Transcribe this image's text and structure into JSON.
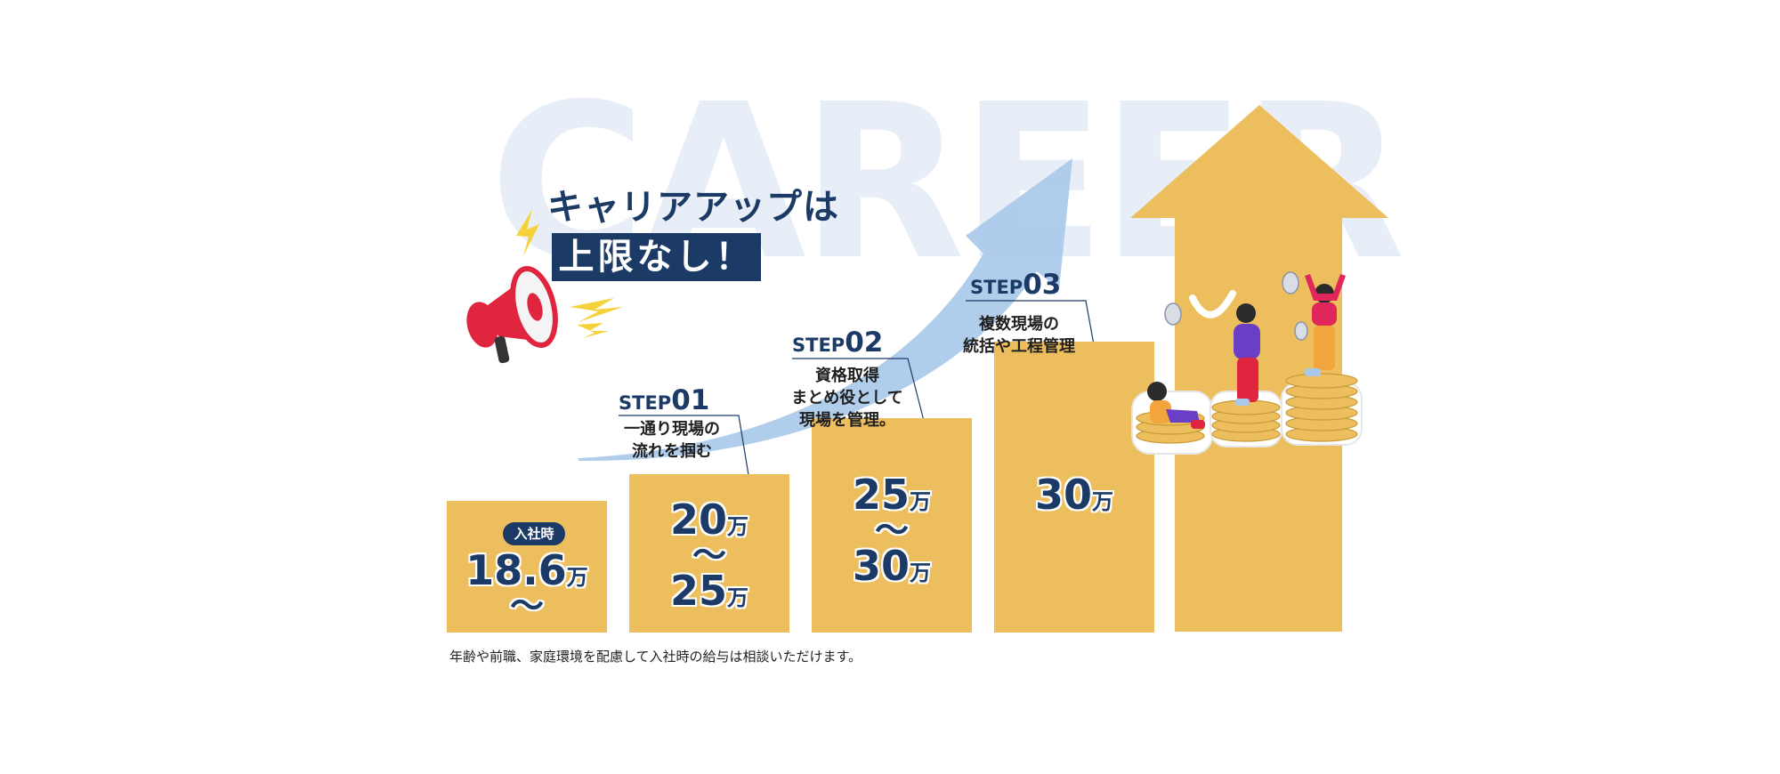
{
  "background_word": "CAREER",
  "headline": {
    "line1": "キャリアアップは",
    "line2": "上限なし！"
  },
  "columns": [
    {
      "badge": "入社時",
      "amount_lines": [
        {
          "value": "18.6",
          "unit": "万"
        }
      ],
      "tilde": "〜"
    },
    {
      "step_label": "STEP",
      "step_number": "01",
      "description": [
        "一通り現場の",
        "流れを掴む"
      ],
      "amount_lines": [
        {
          "value": "20",
          "unit": "万"
        },
        {
          "value": "25",
          "unit": "万"
        }
      ],
      "tilde": "〜"
    },
    {
      "step_label": "STEP",
      "step_number": "02",
      "description": [
        "資格取得",
        "まとめ役として",
        "現場を管理。"
      ],
      "amount_lines": [
        {
          "value": "25",
          "unit": "万"
        },
        {
          "value": "30",
          "unit": "万"
        }
      ],
      "tilde": "〜"
    },
    {
      "step_label": "STEP",
      "step_number": "03",
      "description": [
        "複数現場の",
        "統括や工程管理"
      ],
      "amount_lines": [
        {
          "value": "30",
          "unit": "万"
        }
      ]
    }
  ],
  "footnote": "年齢や前職、家庭環境を配慮して入社時の給与は相談いただけます。",
  "icons": [
    "megaphone-icon",
    "lightning-icon",
    "growth-arrow-icon",
    "coin-stack-icon",
    "people-celebrating-illustration"
  ],
  "colors": {
    "navy": "#1b3a66",
    "gold": "#ecbe5d",
    "sky": "#a9c8ea",
    "watermark": "#e8eef7",
    "red": "#e0263f"
  }
}
